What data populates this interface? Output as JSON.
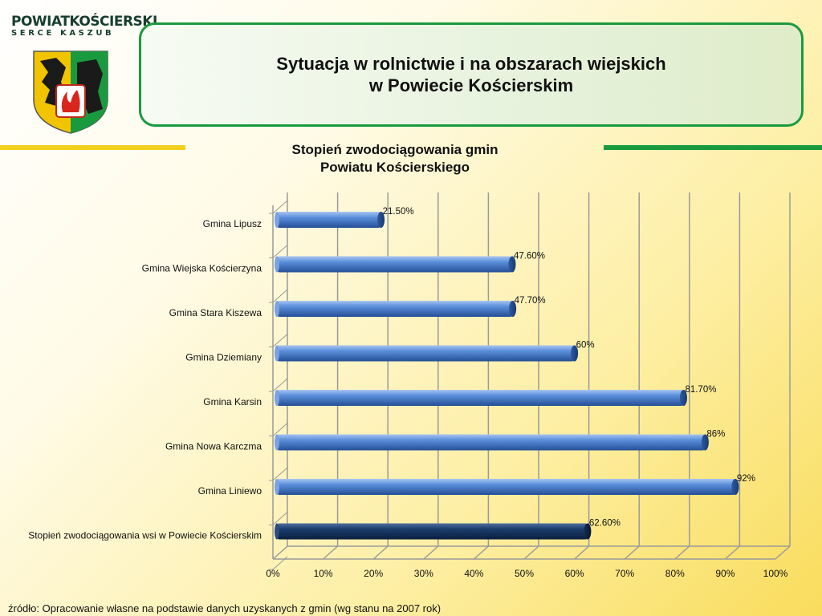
{
  "header": {
    "logo_name": "POWIATKOŚCIERSKI",
    "logo_sub": "SERCE KASZUB",
    "title_line1": "Sytuacja w rolnictwie i na obszarach wiejskich",
    "title_line2": "w Powiecie Kościerskim"
  },
  "colors": {
    "accent_green": "#1a9a3e",
    "accent_yellow": "#f2d11e",
    "bar_blue": "#4a7fd0",
    "bar_highlight": "#163a6a"
  },
  "chart_data": {
    "type": "bar",
    "orientation": "horizontal",
    "title_line1": "Stopień zwodociągowania gmin",
    "title_line2": "Powiatu Kościerskiego",
    "categories": [
      "Gmina Lipusz",
      "Gmina Wiejska Kościerzyna",
      "Gmina Stara Kiszewa",
      "Gmina Dziemiany",
      "Gmina Karsin",
      "Gmina Nowa Karczma",
      "Gmina Liniewo",
      "Stopień zwodociągowania wsi w Powiecie Kościerskim"
    ],
    "values": [
      21.5,
      47.6,
      47.7,
      60,
      81.7,
      86,
      92,
      62.6
    ],
    "data_labels": [
      "21.50%",
      "47.60%",
      "47.70%",
      "60%",
      "81.70%",
      "86%",
      "92%",
      "62.60%"
    ],
    "highlighted_index": 7,
    "xlim": [
      0,
      100
    ],
    "x_ticks": [
      "0%",
      "10%",
      "20%",
      "30%",
      "40%",
      "50%",
      "60%",
      "70%",
      "80%",
      "90%",
      "100%"
    ],
    "grid": true
  },
  "footer": {
    "source": "źródło: Opracowanie własne na podstawie danych uzyskanych z gmin (wg stanu na 2007 rok)"
  }
}
